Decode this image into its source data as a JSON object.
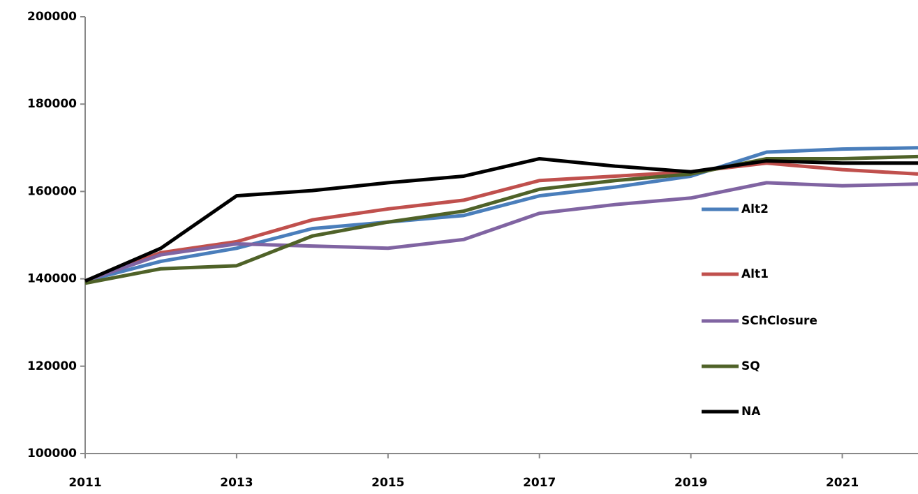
{
  "chart_data": {
    "type": "line",
    "x": [
      2011,
      2012,
      2013,
      2014,
      2015,
      2016,
      2017,
      2018,
      2019,
      2020,
      2021,
      2022
    ],
    "series": [
      {
        "name": "Alt2",
        "color": "#4a7ebb",
        "values": [
          139500,
          144000,
          147000,
          151500,
          153000,
          154500,
          159000,
          161000,
          163500,
          169000,
          169700,
          170000
        ]
      },
      {
        "name": "Alt1",
        "color": "#c0504d",
        "values": [
          139500,
          146000,
          148500,
          153500,
          156000,
          158000,
          162500,
          163500,
          164500,
          166500,
          165000,
          164000
        ]
      },
      {
        "name": "SChClosure",
        "color": "#8064a2",
        "values": [
          139500,
          145500,
          148000,
          147500,
          147000,
          149000,
          155000,
          157000,
          158500,
          162000,
          161300,
          161700
        ]
      },
      {
        "name": "SQ",
        "color": "#4f6228",
        "values": [
          139000,
          142300,
          143000,
          149800,
          153000,
          155500,
          160500,
          162500,
          164000,
          167500,
          167500,
          168000
        ]
      },
      {
        "name": "NA",
        "color": "#000000",
        "values": [
          139500,
          147000,
          159000,
          160200,
          162000,
          163500,
          167500,
          165800,
          164500,
          167000,
          166500,
          166500
        ]
      }
    ],
    "xlim": [
      2011,
      2022
    ],
    "xticks": [
      2011,
      2013,
      2015,
      2017,
      2019,
      2021
    ],
    "ylim": [
      100000,
      200000
    ],
    "yticks": [
      100000,
      120000,
      140000,
      160000,
      180000,
      200000
    ],
    "legend": "right"
  }
}
